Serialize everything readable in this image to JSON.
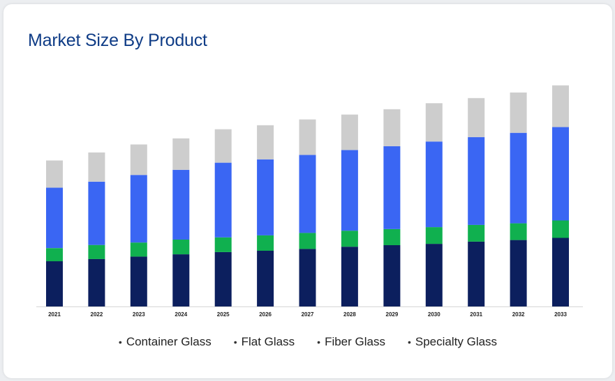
{
  "card": {
    "title": "Market Size By Product"
  },
  "chart_data": {
    "type": "bar",
    "stacked": true,
    "title": "Market Size By Product",
    "xlabel": "",
    "ylabel": "",
    "ylim": [
      0,
      100
    ],
    "grid": false,
    "legend_position": "bottom",
    "categories": [
      "2021",
      "2022",
      "2023",
      "2024",
      "2025",
      "2026",
      "2027",
      "2028",
      "2029",
      "2030",
      "2031",
      "2032",
      "2033"
    ],
    "series": [
      {
        "name": "Container Glass",
        "color": "#0c1f5e",
        "values": [
          20.3,
          21.3,
          22.4,
          23.4,
          24.4,
          25.0,
          25.8,
          26.8,
          27.5,
          28.1,
          29.1,
          29.8,
          30.8
        ]
      },
      {
        "name": "Flat Glass",
        "color": "#10b04f",
        "values": [
          5.9,
          6.3,
          6.3,
          6.6,
          6.6,
          6.9,
          7.2,
          7.2,
          7.2,
          7.5,
          7.5,
          7.5,
          7.8
        ]
      },
      {
        "name": "Fiber Glass",
        "color": "#3a66f3",
        "values": [
          27.1,
          28.4,
          30.3,
          31.3,
          33.5,
          34.1,
          35.0,
          36.2,
          37.2,
          38.4,
          39.4,
          40.6,
          41.9
        ]
      },
      {
        "name": "Specialty Glass",
        "color": "#cdcdcd",
        "values": [
          12.2,
          13.1,
          13.7,
          14.1,
          15.0,
          15.3,
          15.9,
          15.9,
          16.6,
          17.2,
          17.5,
          18.1,
          18.7
        ]
      }
    ]
  }
}
